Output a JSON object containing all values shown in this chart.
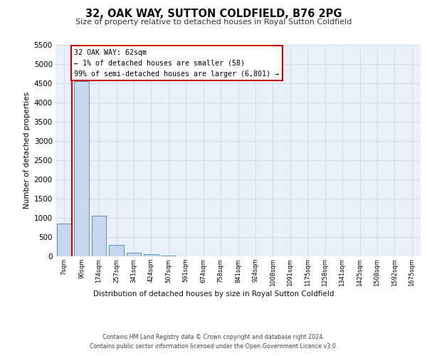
{
  "title": "32, OAK WAY, SUTTON COLDFIELD, B76 2PG",
  "subtitle": "Size of property relative to detached houses in Royal Sutton Coldfield",
  "xlabel": "Distribution of detached houses by size in Royal Sutton Coldfield",
  "ylabel": "Number of detached properties",
  "footnote1": "Contains HM Land Registry data © Crown copyright and database right 2024.",
  "footnote2": "Contains public sector information licensed under the Open Government Licence v3.0.",
  "bar_color": "#c5d8ed",
  "bar_edge_color": "#5a8fc2",
  "annotation_box_color": "#cc0000",
  "annotation_line1": "32 OAK WAY: 62sqm",
  "annotation_line2": "← 1% of detached houses are smaller (58)",
  "annotation_line3": "99% of semi-detached houses are larger (6,801) →",
  "property_line_color": "#cc0000",
  "categories": [
    "7sqm",
    "90sqm",
    "174sqm",
    "257sqm",
    "341sqm",
    "424sqm",
    "507sqm",
    "591sqm",
    "674sqm",
    "758sqm",
    "841sqm",
    "924sqm",
    "1008sqm",
    "1091sqm",
    "1175sqm",
    "1258sqm",
    "1341sqm",
    "1425sqm",
    "1508sqm",
    "1592sqm",
    "1675sqm"
  ],
  "values": [
    850,
    4550,
    1060,
    290,
    85,
    50,
    25,
    0,
    0,
    0,
    0,
    0,
    0,
    0,
    0,
    0,
    0,
    0,
    0,
    0,
    0
  ],
  "ylim": [
    0,
    5500
  ],
  "yticks": [
    0,
    500,
    1000,
    1500,
    2000,
    2500,
    3000,
    3500,
    4000,
    4500,
    5000,
    5500
  ],
  "grid_color": "#d0dce8",
  "bg_color": "#eaf0f8",
  "fig_width": 6.0,
  "fig_height": 5.0,
  "dpi": 100
}
